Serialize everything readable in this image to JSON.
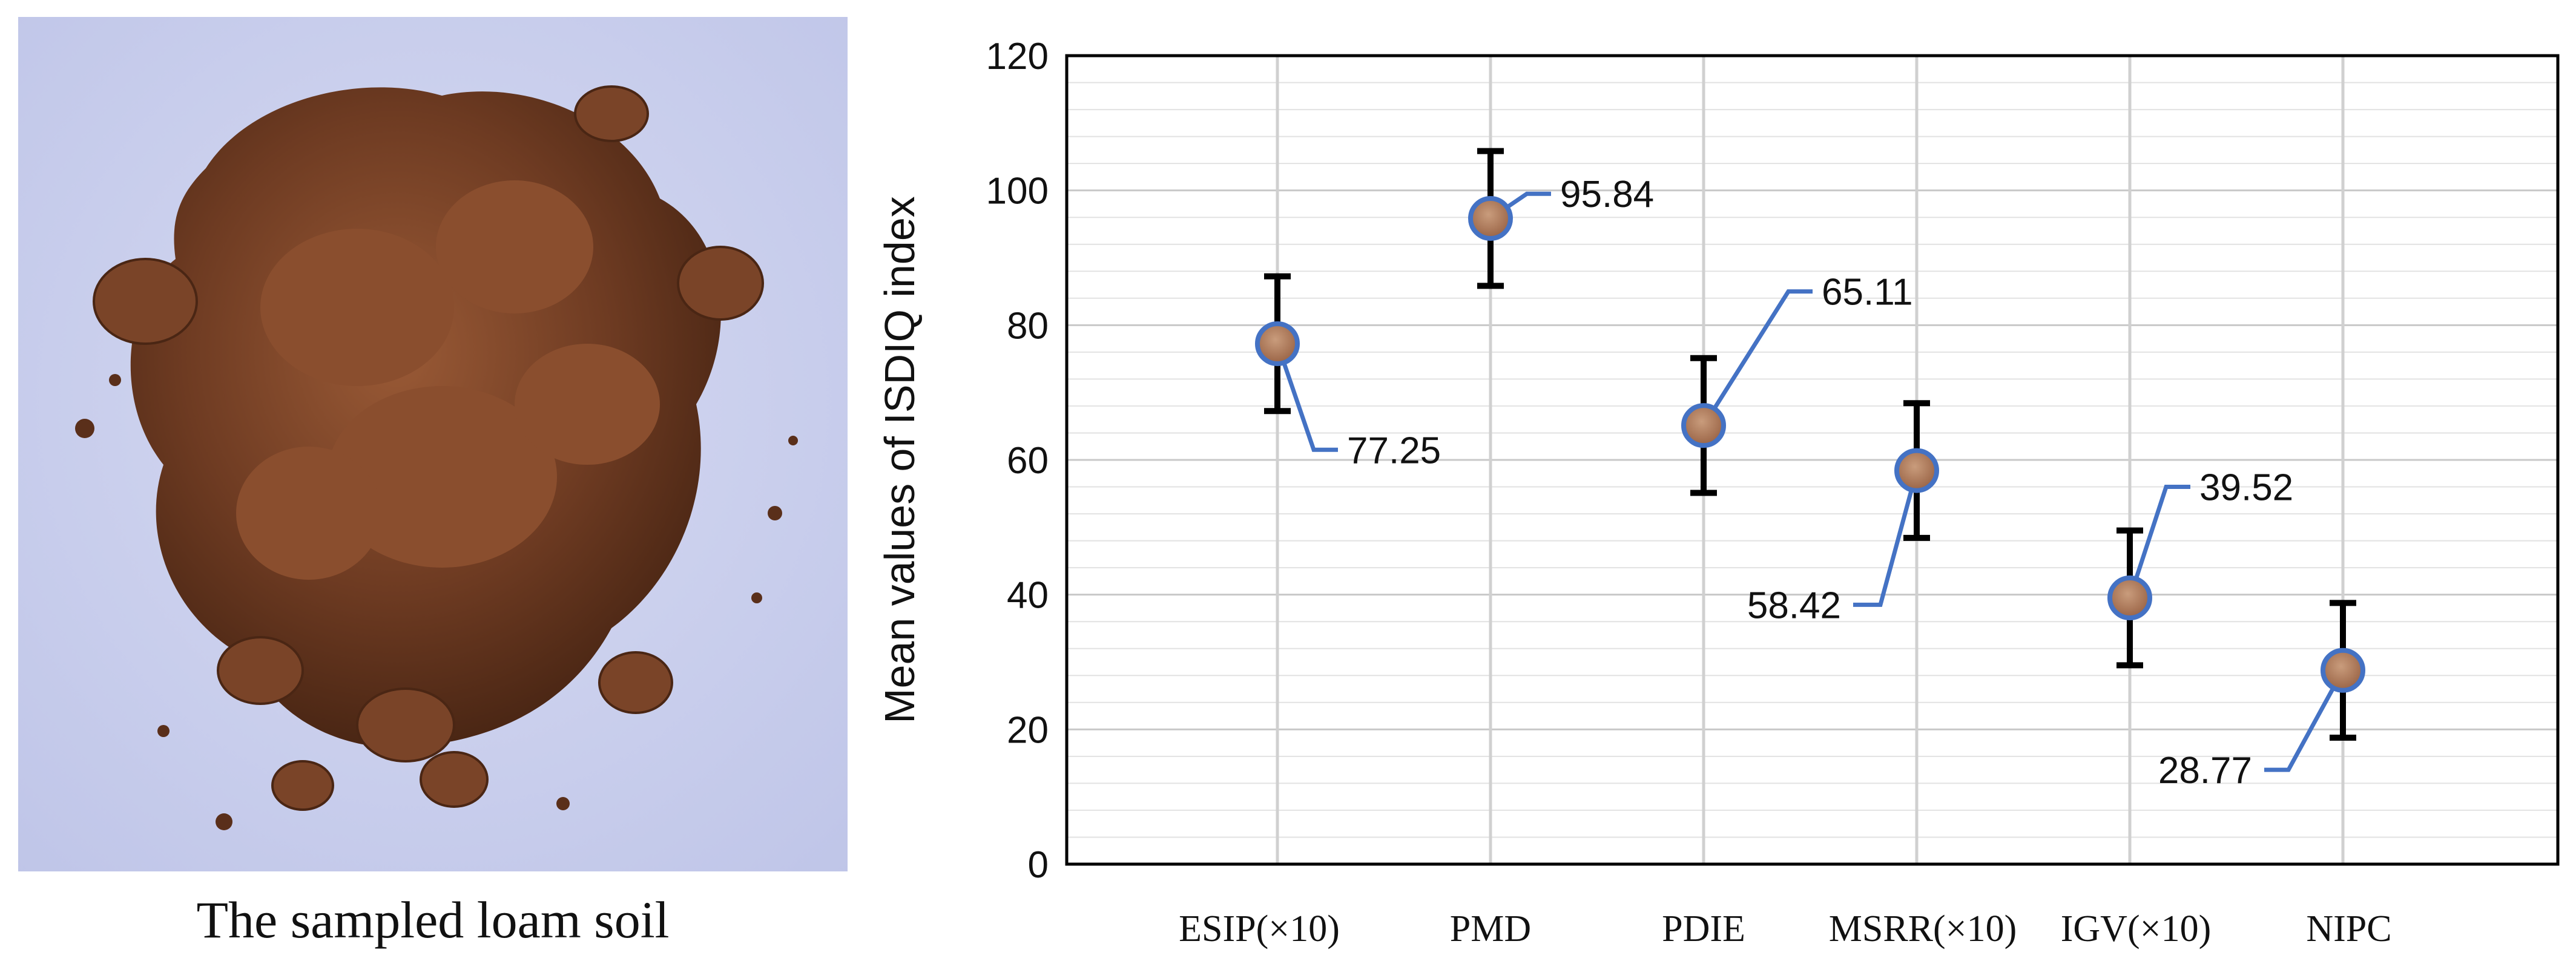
{
  "photo": {
    "caption": "The sampled loam soil"
  },
  "chart_data": {
    "type": "scatter",
    "title": "",
    "xlabel": "",
    "ylabel": "Mean values of ISDIQ index",
    "ylim": [
      0,
      120
    ],
    "yticks": [
      0,
      20,
      40,
      60,
      80,
      100,
      120
    ],
    "categories": [
      "ESIP(×10)",
      "PMD",
      "PDIE",
      "MSRR(×10)",
      "IGV(×10)",
      "NIPC"
    ],
    "values": [
      77.25,
      95.84,
      65.11,
      58.42,
      39.52,
      28.77
    ],
    "error_bar": 10,
    "data_labels": [
      "77.25",
      "95.84",
      "65.11",
      "58.42",
      "39.52",
      "28.77"
    ],
    "grid": true,
    "colors": {
      "leader": "#4472C4",
      "marker_ring": "#4472C4",
      "marker_fill": "#b07a5a",
      "error": "#000000"
    }
  }
}
